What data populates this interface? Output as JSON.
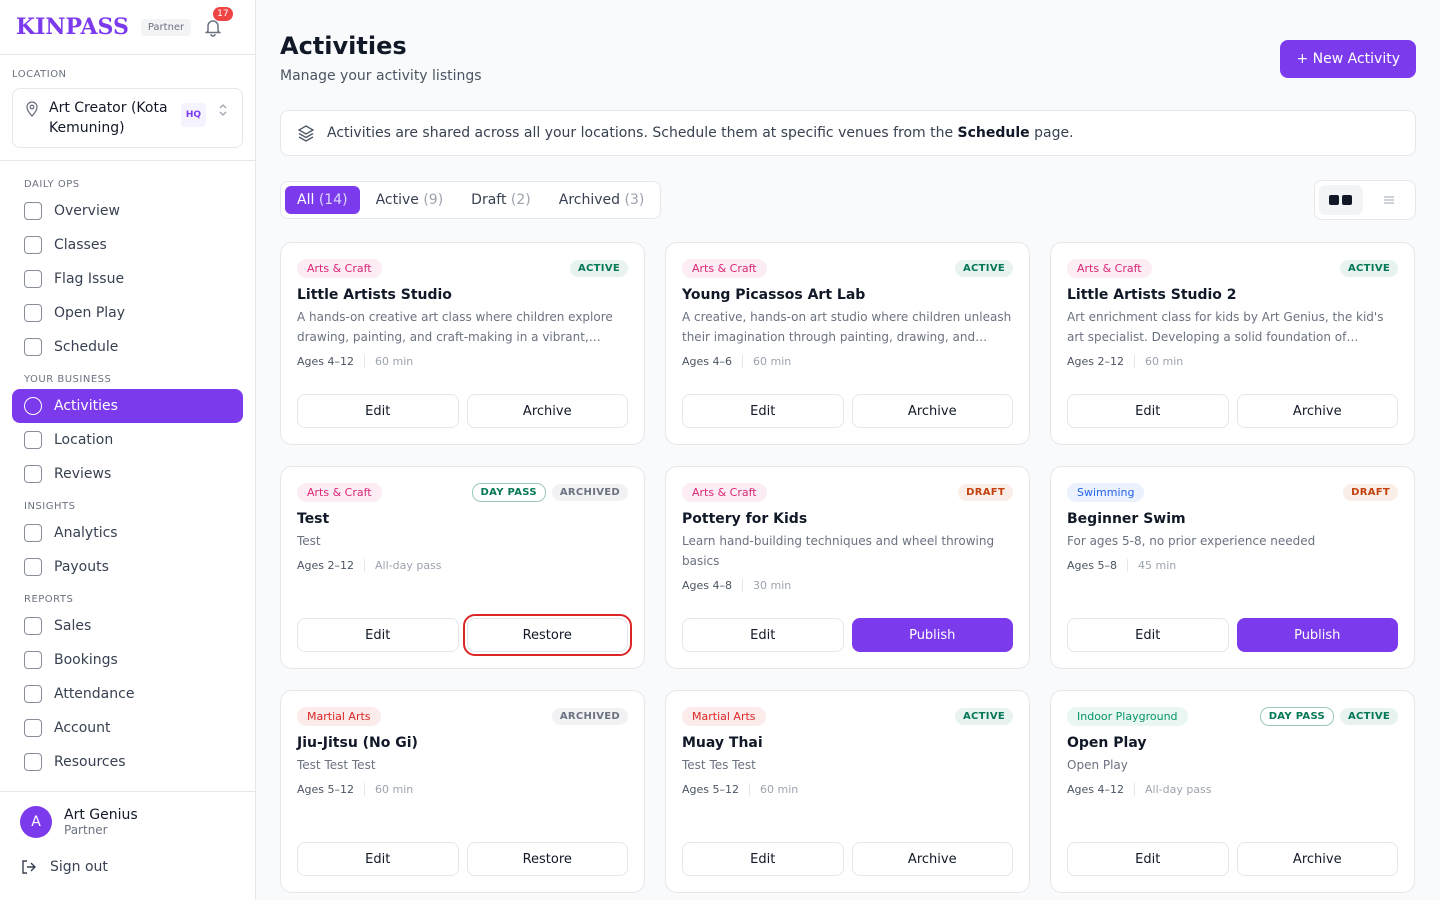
{
  "sidebar": {
    "brand": "KINPASS",
    "badge": "Partner",
    "notifications": "17",
    "location": {
      "label": "LOCATION",
      "name": "Art Creator (Kota Kemuning)",
      "tag": "HQ"
    },
    "sections": [
      {
        "title": "DAILY OPS",
        "items": [
          "Overview",
          "Classes",
          "Flag Issue",
          "Open Play",
          "Schedule"
        ]
      },
      {
        "title": "YOUR BUSINESS",
        "items": [
          "Activities",
          "Location",
          "Reviews"
        ]
      },
      {
        "title": "INSIGHTS",
        "items": [
          "Analytics",
          "Payouts"
        ]
      },
      {
        "title": "REPORTS",
        "items": [
          "Sales",
          "Bookings",
          "Attendance",
          "Account",
          "Resources"
        ]
      }
    ],
    "active_item": "Activities",
    "user": {
      "initial": "A",
      "name": "Art Genius",
      "role": "Partner"
    },
    "sign_out": "Sign out"
  },
  "header": {
    "title": "Activities",
    "subtitle": "Manage your activity listings",
    "button": "+ New Activity"
  },
  "banner": {
    "text": "Activities are shared across all your locations. Schedule them at specific venues from the ",
    "link": "Schedule",
    "tail": " page."
  },
  "tabs": [
    {
      "label": "All",
      "count": "(14)",
      "active": true
    },
    {
      "label": "Active",
      "count": "(9)"
    },
    {
      "label": "Draft",
      "count": "(2)"
    },
    {
      "label": "Archived",
      "count": "(3)"
    }
  ],
  "cards": [
    {
      "category": {
        "text": "Arts & Craft",
        "color": "#db2777"
      },
      "badges": [
        {
          "text": "ACTIVE",
          "color": "#047857"
        }
      ],
      "title": "Little Artists Studio",
      "description": "A hands-on creative art class where children explore drawing, painting, and craft-making in a vibrant, supportive environment.",
      "ages": "Ages 4–12",
      "duration": "60 min",
      "buttons": [
        {
          "text": "Edit"
        },
        {
          "text": "Archive"
        }
      ]
    },
    {
      "category": {
        "text": "Arts & Craft",
        "color": "#db2777"
      },
      "badges": [
        {
          "text": "ACTIVE",
          "color": "#047857"
        }
      ],
      "title": "Young Picassos Art Lab",
      "description": "A creative, hands-on art studio where children unleash their imagination through painting, drawing, and mixed-media projects.",
      "ages": "Ages 4–6",
      "duration": "60 min",
      "buttons": [
        {
          "text": "Edit"
        },
        {
          "text": "Archive"
        }
      ]
    },
    {
      "category": {
        "text": "Arts & Craft",
        "color": "#db2777"
      },
      "badges": [
        {
          "text": "ACTIVE",
          "color": "#047857"
        }
      ],
      "title": "Little Artists Studio 2",
      "description": "Art enrichment class for kids by Art Genius, the kid's art specialist. Developing a solid foundation of creativity and skills.",
      "ages": "Ages 2–12",
      "duration": "60 min",
      "buttons": [
        {
          "text": "Edit"
        },
        {
          "text": "Archive"
        }
      ]
    },
    {
      "category": {
        "text": "Arts & Craft",
        "color": "#db2777"
      },
      "badges": [
        {
          "text": "DAY PASS",
          "color": "#047857",
          "outline": true
        },
        {
          "text": "ARCHIVED",
          "color": "#6b7280"
        }
      ],
      "title": "Test",
      "description": "Test",
      "ages": "Ages 2–12",
      "duration": "All-day pass",
      "buttons": [
        {
          "text": "Edit"
        },
        {
          "text": "Restore",
          "highlight": true
        }
      ]
    },
    {
      "category": {
        "text": "Arts & Craft",
        "color": "#db2777"
      },
      "badges": [
        {
          "text": "DRAFT",
          "color": "#c2410c"
        }
      ],
      "title": "Pottery for Kids",
      "description": "Learn hand-building techniques and wheel throwing basics",
      "ages": "Ages 4–8",
      "duration": "30 min",
      "buttons": [
        {
          "text": "Edit"
        },
        {
          "text": "Publish",
          "primary": true
        }
      ]
    },
    {
      "category": {
        "text": "Swimming",
        "color": "#2563eb"
      },
      "badges": [
        {
          "text": "DRAFT",
          "color": "#c2410c"
        }
      ],
      "title": "Beginner Swim",
      "description": "For ages 5-8, no prior experience needed",
      "ages": "Ages 5–8",
      "duration": "45 min",
      "buttons": [
        {
          "text": "Edit"
        },
        {
          "text": "Publish",
          "primary": true
        }
      ]
    },
    {
      "category": {
        "text": "Martial Arts",
        "color": "#dc2626"
      },
      "badges": [
        {
          "text": "ARCHIVED",
          "color": "#6b7280"
        }
      ],
      "title": "Jiu-Jitsu (No Gi)",
      "description": "Test Test Test",
      "ages": "Ages 5–12",
      "duration": "60 min",
      "buttons": [
        {
          "text": "Edit"
        },
        {
          "text": "Restore"
        }
      ]
    },
    {
      "category": {
        "text": "Martial Arts",
        "color": "#dc2626"
      },
      "badges": [
        {
          "text": "ACTIVE",
          "color": "#047857"
        }
      ],
      "title": "Muay Thai",
      "description": "Test Tes Test",
      "ages": "Ages 5–12",
      "duration": "60 min",
      "buttons": [
        {
          "text": "Edit"
        },
        {
          "text": "Archive"
        }
      ]
    },
    {
      "category": {
        "text": "Indoor Playground",
        "color": "#059669"
      },
      "badges": [
        {
          "text": "DAY PASS",
          "color": "#047857",
          "outline": true
        },
        {
          "text": "ACTIVE",
          "color": "#047857"
        }
      ],
      "title": "Open Play",
      "description": "Open Play",
      "ages": "Ages 4–12",
      "duration": "All-day pass",
      "buttons": [
        {
          "text": "Edit"
        },
        {
          "text": "Archive"
        }
      ]
    }
  ]
}
